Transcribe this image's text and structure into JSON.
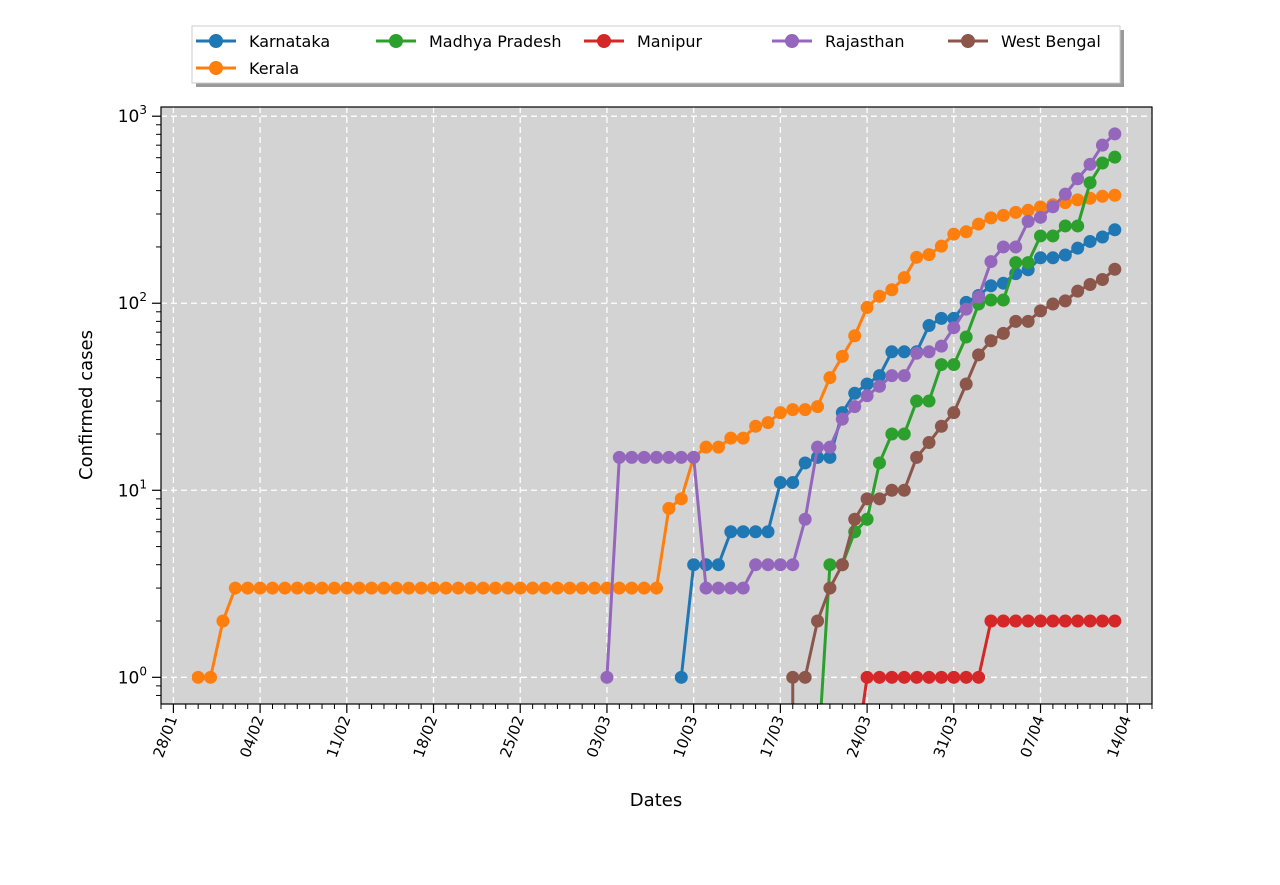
{
  "chart_data": {
    "type": "line",
    "title": "",
    "xlabel": "Dates",
    "ylabel": "Confirmed cases",
    "yscale": "log",
    "ylim": [
      0.72,
      1120
    ],
    "xlim": [
      "2020-01-27",
      "2020-04-16"
    ],
    "x_tick_labels": [
      "28/01",
      "04/02",
      "11/02",
      "18/02",
      "25/02",
      "03/03",
      "10/03",
      "17/03",
      "24/03",
      "31/03",
      "07/04",
      "14/04"
    ],
    "x_tick_dates": [
      "2020-01-28",
      "2020-02-04",
      "2020-02-11",
      "2020-02-18",
      "2020-02-25",
      "2020-03-03",
      "2020-03-10",
      "2020-03-17",
      "2020-03-24",
      "2020-03-31",
      "2020-04-07",
      "2020-04-14"
    ],
    "y_tick_labels": [
      {
        "base": "10",
        "exp": "0",
        "value": 1
      },
      {
        "base": "10",
        "exp": "1",
        "value": 10
      },
      {
        "base": "10",
        "exp": "2",
        "value": 100
      },
      {
        "base": "10",
        "exp": "3",
        "value": 1000
      }
    ],
    "grid": true,
    "legend_position": "top-center",
    "background_color": "#d3d3d3",
    "series": [
      {
        "name": "Karnataka",
        "color": "#1f77b4",
        "points": [
          [
            "2020-03-09",
            1
          ],
          [
            "2020-03-10",
            4
          ],
          [
            "2020-03-11",
            4
          ],
          [
            "2020-03-12",
            4
          ],
          [
            "2020-03-13",
            6
          ],
          [
            "2020-03-14",
            6
          ],
          [
            "2020-03-15",
            6
          ],
          [
            "2020-03-16",
            6
          ],
          [
            "2020-03-17",
            11
          ],
          [
            "2020-03-18",
            11
          ],
          [
            "2020-03-19",
            14
          ],
          [
            "2020-03-20",
            15
          ],
          [
            "2020-03-21",
            15
          ],
          [
            "2020-03-22",
            26
          ],
          [
            "2020-03-23",
            33
          ],
          [
            "2020-03-24",
            37
          ],
          [
            "2020-03-25",
            41
          ],
          [
            "2020-03-26",
            55
          ],
          [
            "2020-03-27",
            55
          ],
          [
            "2020-03-28",
            55
          ],
          [
            "2020-03-29",
            76
          ],
          [
            "2020-03-30",
            83
          ],
          [
            "2020-03-31",
            83
          ],
          [
            "2020-04-01",
            101
          ],
          [
            "2020-04-02",
            110
          ],
          [
            "2020-04-03",
            124
          ],
          [
            "2020-04-04",
            128
          ],
          [
            "2020-04-05",
            144
          ],
          [
            "2020-04-06",
            151
          ],
          [
            "2020-04-07",
            175
          ],
          [
            "2020-04-08",
            175
          ],
          [
            "2020-04-09",
            181
          ],
          [
            "2020-04-10",
            197
          ],
          [
            "2020-04-11",
            214
          ],
          [
            "2020-04-12",
            226
          ],
          [
            "2020-04-13",
            247
          ]
        ]
      },
      {
        "name": "Kerala",
        "color": "#ff7f0e",
        "points": [
          [
            "2020-01-30",
            1
          ],
          [
            "2020-01-31",
            1
          ],
          [
            "2020-02-01",
            2
          ],
          [
            "2020-02-02",
            3
          ],
          [
            "2020-02-03",
            3
          ],
          [
            "2020-02-04",
            3
          ],
          [
            "2020-02-05",
            3
          ],
          [
            "2020-02-06",
            3
          ],
          [
            "2020-02-07",
            3
          ],
          [
            "2020-02-08",
            3
          ],
          [
            "2020-02-09",
            3
          ],
          [
            "2020-02-10",
            3
          ],
          [
            "2020-02-11",
            3
          ],
          [
            "2020-02-12",
            3
          ],
          [
            "2020-02-13",
            3
          ],
          [
            "2020-02-14",
            3
          ],
          [
            "2020-02-15",
            3
          ],
          [
            "2020-02-16",
            3
          ],
          [
            "2020-02-17",
            3
          ],
          [
            "2020-02-18",
            3
          ],
          [
            "2020-02-19",
            3
          ],
          [
            "2020-02-20",
            3
          ],
          [
            "2020-02-21",
            3
          ],
          [
            "2020-02-22",
            3
          ],
          [
            "2020-02-23",
            3
          ],
          [
            "2020-02-24",
            3
          ],
          [
            "2020-02-25",
            3
          ],
          [
            "2020-02-26",
            3
          ],
          [
            "2020-02-27",
            3
          ],
          [
            "2020-02-28",
            3
          ],
          [
            "2020-02-29",
            3
          ],
          [
            "2020-03-01",
            3
          ],
          [
            "2020-03-02",
            3
          ],
          [
            "2020-03-03",
            3
          ],
          [
            "2020-03-04",
            3
          ],
          [
            "2020-03-05",
            3
          ],
          [
            "2020-03-06",
            3
          ],
          [
            "2020-03-07",
            3
          ],
          [
            "2020-03-08",
            8
          ],
          [
            "2020-03-09",
            9
          ],
          [
            "2020-03-10",
            15
          ],
          [
            "2020-03-11",
            17
          ],
          [
            "2020-03-12",
            17
          ],
          [
            "2020-03-13",
            19
          ],
          [
            "2020-03-14",
            19
          ],
          [
            "2020-03-15",
            22
          ],
          [
            "2020-03-16",
            23
          ],
          [
            "2020-03-17",
            26
          ],
          [
            "2020-03-18",
            27
          ],
          [
            "2020-03-19",
            27
          ],
          [
            "2020-03-20",
            28
          ],
          [
            "2020-03-21",
            40
          ],
          [
            "2020-03-22",
            52
          ],
          [
            "2020-03-23",
            67
          ],
          [
            "2020-03-24",
            95
          ],
          [
            "2020-03-25",
            109
          ],
          [
            "2020-03-26",
            118
          ],
          [
            "2020-03-27",
            137
          ],
          [
            "2020-03-28",
            176
          ],
          [
            "2020-03-29",
            182
          ],
          [
            "2020-03-30",
            202
          ],
          [
            "2020-03-31",
            234
          ],
          [
            "2020-04-01",
            241
          ],
          [
            "2020-04-02",
            265
          ],
          [
            "2020-04-03",
            286
          ],
          [
            "2020-04-04",
            295
          ],
          [
            "2020-04-05",
            306
          ],
          [
            "2020-04-06",
            314
          ],
          [
            "2020-04-07",
            327
          ],
          [
            "2020-04-08",
            336
          ],
          [
            "2020-04-09",
            345
          ],
          [
            "2020-04-10",
            357
          ],
          [
            "2020-04-11",
            364
          ],
          [
            "2020-04-12",
            373
          ],
          [
            "2020-04-13",
            378
          ]
        ]
      },
      {
        "name": "Madhya Pradesh",
        "color": "#2ca02c",
        "points": [
          [
            "2020-03-20",
            0
          ],
          [
            "2020-03-21",
            4
          ],
          [
            "2020-03-22",
            4
          ],
          [
            "2020-03-23",
            6
          ],
          [
            "2020-03-24",
            7
          ],
          [
            "2020-03-25",
            14
          ],
          [
            "2020-03-26",
            20
          ],
          [
            "2020-03-27",
            20
          ],
          [
            "2020-03-28",
            30
          ],
          [
            "2020-03-29",
            30
          ],
          [
            "2020-03-30",
            47
          ],
          [
            "2020-03-31",
            47
          ],
          [
            "2020-04-01",
            66
          ],
          [
            "2020-04-02",
            99
          ],
          [
            "2020-04-03",
            104
          ],
          [
            "2020-04-04",
            104
          ],
          [
            "2020-04-05",
            165
          ],
          [
            "2020-04-06",
            165
          ],
          [
            "2020-04-07",
            229
          ],
          [
            "2020-04-08",
            229
          ],
          [
            "2020-04-09",
            259
          ],
          [
            "2020-04-10",
            259
          ],
          [
            "2020-04-11",
            441
          ],
          [
            "2020-04-12",
            562
          ],
          [
            "2020-04-13",
            604
          ]
        ]
      },
      {
        "name": "Manipur",
        "color": "#d62728",
        "points": [
          [
            "2020-03-23",
            0
          ],
          [
            "2020-03-24",
            1
          ],
          [
            "2020-03-25",
            1
          ],
          [
            "2020-03-26",
            1
          ],
          [
            "2020-03-27",
            1
          ],
          [
            "2020-03-28",
            1
          ],
          [
            "2020-03-29",
            1
          ],
          [
            "2020-03-30",
            1
          ],
          [
            "2020-03-31",
            1
          ],
          [
            "2020-04-01",
            1
          ],
          [
            "2020-04-02",
            1
          ],
          [
            "2020-04-03",
            2
          ],
          [
            "2020-04-04",
            2
          ],
          [
            "2020-04-05",
            2
          ],
          [
            "2020-04-06",
            2
          ],
          [
            "2020-04-07",
            2
          ],
          [
            "2020-04-08",
            2
          ],
          [
            "2020-04-09",
            2
          ],
          [
            "2020-04-10",
            2
          ],
          [
            "2020-04-11",
            2
          ],
          [
            "2020-04-12",
            2
          ],
          [
            "2020-04-13",
            2
          ]
        ]
      },
      {
        "name": "Rajasthan",
        "color": "#9467bd",
        "points": [
          [
            "2020-03-03",
            1
          ],
          [
            "2020-03-04",
            15
          ],
          [
            "2020-03-05",
            15
          ],
          [
            "2020-03-06",
            15
          ],
          [
            "2020-03-07",
            15
          ],
          [
            "2020-03-08",
            15
          ],
          [
            "2020-03-09",
            15
          ],
          [
            "2020-03-10",
            15
          ],
          [
            "2020-03-11",
            3
          ],
          [
            "2020-03-12",
            3
          ],
          [
            "2020-03-13",
            3
          ],
          [
            "2020-03-14",
            3
          ],
          [
            "2020-03-15",
            4
          ],
          [
            "2020-03-16",
            4
          ],
          [
            "2020-03-17",
            4
          ],
          [
            "2020-03-18",
            4
          ],
          [
            "2020-03-19",
            7
          ],
          [
            "2020-03-20",
            17
          ],
          [
            "2020-03-21",
            17
          ],
          [
            "2020-03-22",
            24
          ],
          [
            "2020-03-23",
            28
          ],
          [
            "2020-03-24",
            32
          ],
          [
            "2020-03-25",
            36
          ],
          [
            "2020-03-26",
            41
          ],
          [
            "2020-03-27",
            41
          ],
          [
            "2020-03-28",
            54
          ],
          [
            "2020-03-29",
            55
          ],
          [
            "2020-03-30",
            59
          ],
          [
            "2020-03-31",
            74
          ],
          [
            "2020-04-01",
            93
          ],
          [
            "2020-04-02",
            108
          ],
          [
            "2020-04-03",
            167
          ],
          [
            "2020-04-04",
            200
          ],
          [
            "2020-04-05",
            200
          ],
          [
            "2020-04-06",
            274
          ],
          [
            "2020-04-07",
            288
          ],
          [
            "2020-04-08",
            328
          ],
          [
            "2020-04-09",
            383
          ],
          [
            "2020-04-10",
            463
          ],
          [
            "2020-04-11",
            553
          ],
          [
            "2020-04-12",
            700
          ],
          [
            "2020-04-13",
            804
          ]
        ]
      },
      {
        "name": "West Bengal",
        "color": "#8c564b",
        "points": [
          [
            "2020-03-18",
            0
          ],
          [
            "2020-03-18",
            1
          ],
          [
            "2020-03-19",
            1
          ],
          [
            "2020-03-20",
            2
          ],
          [
            "2020-03-21",
            3
          ],
          [
            "2020-03-22",
            4
          ],
          [
            "2020-03-23",
            7
          ],
          [
            "2020-03-24",
            9
          ],
          [
            "2020-03-25",
            9
          ],
          [
            "2020-03-26",
            10
          ],
          [
            "2020-03-27",
            10
          ],
          [
            "2020-03-28",
            15
          ],
          [
            "2020-03-29",
            18
          ],
          [
            "2020-03-30",
            22
          ],
          [
            "2020-03-31",
            26
          ],
          [
            "2020-04-01",
            37
          ],
          [
            "2020-04-02",
            53
          ],
          [
            "2020-04-03",
            63
          ],
          [
            "2020-04-04",
            69
          ],
          [
            "2020-04-05",
            80
          ],
          [
            "2020-04-06",
            80
          ],
          [
            "2020-04-07",
            91
          ],
          [
            "2020-04-08",
            99
          ],
          [
            "2020-04-09",
            103
          ],
          [
            "2020-04-10",
            116
          ],
          [
            "2020-04-11",
            126
          ],
          [
            "2020-04-12",
            134
          ],
          [
            "2020-04-13",
            152
          ]
        ]
      }
    ]
  }
}
